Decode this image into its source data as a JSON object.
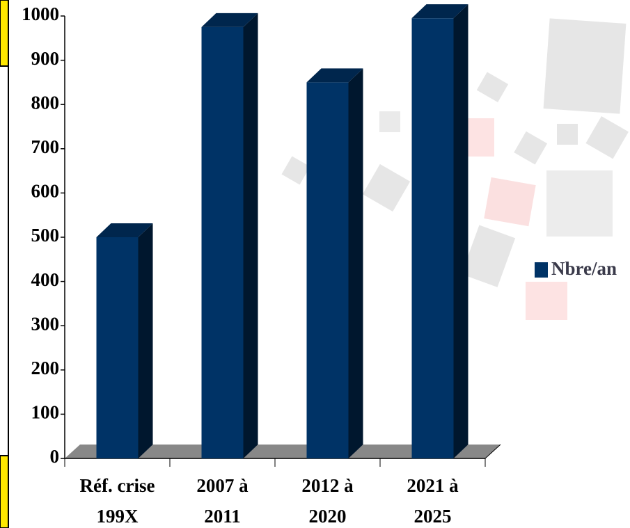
{
  "chart_data": {
    "type": "bar3d",
    "categories": [
      "Réf. crise 199X",
      "2007 à 2011",
      "2012 à 2020",
      "2021 à 2025"
    ],
    "series": [
      {
        "name": "Nbre/an",
        "color": "#003366",
        "values": [
          500,
          975,
          850,
          995
        ]
      }
    ],
    "ylim": [
      0,
      1000
    ],
    "yticks": [
      0,
      100,
      200,
      300,
      400,
      500,
      600,
      700,
      800,
      900,
      1000
    ],
    "legend": "right"
  }
}
